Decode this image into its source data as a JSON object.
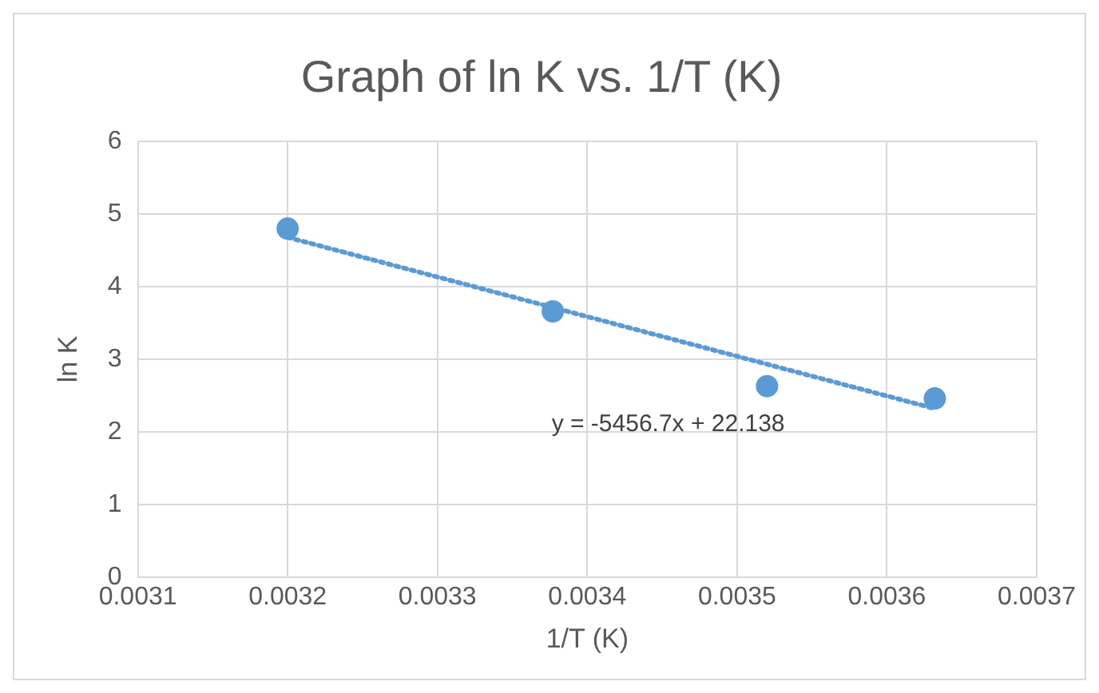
{
  "chart_data": {
    "type": "scatter",
    "title": "Graph of ln K vs. 1/T (K)",
    "xlabel": "1/T (K)",
    "ylabel": "ln K",
    "xlim": [
      0.0031,
      0.0037
    ],
    "xticks": [
      0.0031,
      0.0032,
      0.0033,
      0.0034,
      0.0035,
      0.0036,
      0.0037
    ],
    "ylim": [
      0,
      6
    ],
    "yticks": [
      0,
      1,
      2,
      3,
      4,
      5,
      6
    ],
    "grid": true,
    "legend": false,
    "marker": "circle",
    "series": [
      {
        "type": "scatter",
        "color": "#5b9bd5",
        "x": [
          0.0032,
          0.003377,
          0.00352,
          0.003632
        ],
        "values": [
          4.8,
          3.66,
          2.63,
          2.46
        ]
      },
      {
        "type": "line",
        "color": "#5b9bd5",
        "line_style": "dotted",
        "marker": "none",
        "x": [
          0.0032,
          0.003632
        ],
        "values": [
          4.68,
          2.32
        ]
      }
    ],
    "annotations": [
      "y = -5456.7x + 22.138"
    ]
  }
}
